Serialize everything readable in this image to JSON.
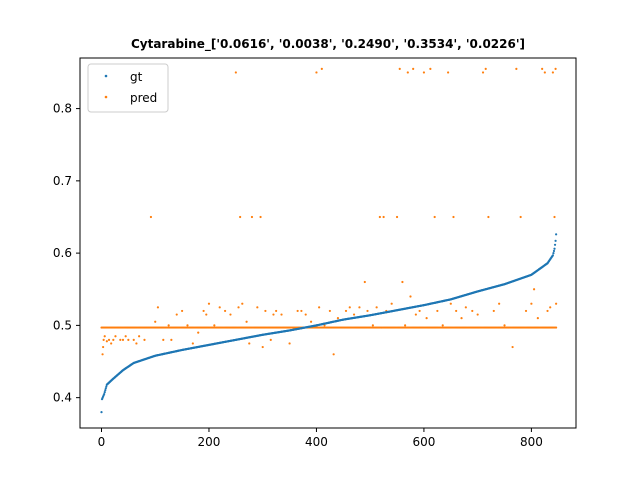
{
  "chart_data": {
    "type": "scatter",
    "title": "Cytarabine_['0.0616', '0.0038', '0.2490', '0.3534', '0.0226']",
    "xlabel": "",
    "ylabel": "",
    "xlim": [
      -40,
      883
    ],
    "ylim": [
      0.358,
      0.87
    ],
    "x_ticks": [
      0,
      200,
      400,
      600,
      800
    ],
    "y_ticks": [
      0.4,
      0.5,
      0.6,
      0.7,
      0.8
    ],
    "grid": false,
    "legend_position": "top-left",
    "series": [
      {
        "name": "gt",
        "color": "#1f77b4",
        "curve": [
          [
            0,
            0.38
          ],
          [
            1,
            0.398
          ],
          [
            5,
            0.405
          ],
          [
            10,
            0.418
          ],
          [
            20,
            0.425
          ],
          [
            40,
            0.438
          ],
          [
            60,
            0.448
          ],
          [
            80,
            0.453
          ],
          [
            100,
            0.458
          ],
          [
            150,
            0.466
          ],
          [
            200,
            0.473
          ],
          [
            250,
            0.48
          ],
          [
            300,
            0.487
          ],
          [
            350,
            0.493
          ],
          [
            400,
            0.5
          ],
          [
            450,
            0.508
          ],
          [
            500,
            0.514
          ],
          [
            550,
            0.521
          ],
          [
            600,
            0.528
          ],
          [
            650,
            0.536
          ],
          [
            700,
            0.547
          ],
          [
            750,
            0.557
          ],
          [
            800,
            0.57
          ],
          [
            830,
            0.586
          ],
          [
            840,
            0.597
          ],
          [
            843,
            0.606
          ],
          [
            845,
            0.617
          ],
          [
            846,
            0.626
          ]
        ]
      },
      {
        "name": "pred",
        "color": "#ff7f0e",
        "baseline": 0.497,
        "points": [
          [
            2,
            0.46
          ],
          [
            3,
            0.47
          ],
          [
            4,
            0.48
          ],
          [
            6,
            0.485
          ],
          [
            10,
            0.478
          ],
          [
            14,
            0.48
          ],
          [
            18,
            0.475
          ],
          [
            22,
            0.48
          ],
          [
            26,
            0.485
          ],
          [
            35,
            0.48
          ],
          [
            40,
            0.48
          ],
          [
            45,
            0.485
          ],
          [
            50,
            0.48
          ],
          [
            60,
            0.48
          ],
          [
            65,
            0.475
          ],
          [
            70,
            0.485
          ],
          [
            80,
            0.48
          ],
          [
            92,
            0.65
          ],
          [
            100,
            0.505
          ],
          [
            105,
            0.525
          ],
          [
            115,
            0.48
          ],
          [
            125,
            0.5
          ],
          [
            130,
            0.48
          ],
          [
            140,
            0.515
          ],
          [
            150,
            0.52
          ],
          [
            160,
            0.5
          ],
          [
            170,
            0.475
          ],
          [
            180,
            0.49
          ],
          [
            190,
            0.52
          ],
          [
            195,
            0.515
          ],
          [
            200,
            0.53
          ],
          [
            210,
            0.5
          ],
          [
            220,
            0.525
          ],
          [
            230,
            0.52
          ],
          [
            240,
            0.515
          ],
          [
            250,
            0.85
          ],
          [
            255,
            0.525
          ],
          [
            258,
            0.65
          ],
          [
            262,
            0.53
          ],
          [
            270,
            0.505
          ],
          [
            275,
            0.475
          ],
          [
            280,
            0.65
          ],
          [
            290,
            0.525
          ],
          [
            296,
            0.65
          ],
          [
            300,
            0.47
          ],
          [
            305,
            0.52
          ],
          [
            315,
            0.48
          ],
          [
            320,
            0.515
          ],
          [
            325,
            0.52
          ],
          [
            335,
            0.515
          ],
          [
            350,
            0.475
          ],
          [
            365,
            0.52
          ],
          [
            372,
            0.52
          ],
          [
            380,
            0.515
          ],
          [
            390,
            0.505
          ],
          [
            400,
            0.85
          ],
          [
            405,
            0.525
          ],
          [
            410,
            0.855
          ],
          [
            415,
            0.5
          ],
          [
            425,
            0.52
          ],
          [
            432,
            0.46
          ],
          [
            440,
            0.51
          ],
          [
            455,
            0.52
          ],
          [
            462,
            0.525
          ],
          [
            470,
            0.515
          ],
          [
            480,
            0.525
          ],
          [
            490,
            0.56
          ],
          [
            495,
            0.52
          ],
          [
            505,
            0.5
          ],
          [
            512,
            0.525
          ],
          [
            518,
            0.65
          ],
          [
            525,
            0.65
          ],
          [
            530,
            0.52
          ],
          [
            540,
            0.53
          ],
          [
            550,
            0.65
          ],
          [
            555,
            0.855
          ],
          [
            560,
            0.56
          ],
          [
            565,
            0.5
          ],
          [
            570,
            0.85
          ],
          [
            575,
            0.54
          ],
          [
            580,
            0.855
          ],
          [
            585,
            0.515
          ],
          [
            592,
            0.52
          ],
          [
            600,
            0.85
          ],
          [
            605,
            0.51
          ],
          [
            612,
            0.855
          ],
          [
            620,
            0.65
          ],
          [
            625,
            0.52
          ],
          [
            635,
            0.5
          ],
          [
            645,
            0.85
          ],
          [
            650,
            0.53
          ],
          [
            655,
            0.65
          ],
          [
            660,
            0.52
          ],
          [
            670,
            0.51
          ],
          [
            678,
            0.525
          ],
          [
            690,
            0.52
          ],
          [
            700,
            0.515
          ],
          [
            710,
            0.85
          ],
          [
            715,
            0.855
          ],
          [
            720,
            0.65
          ],
          [
            730,
            0.52
          ],
          [
            740,
            0.53
          ],
          [
            750,
            0.5
          ],
          [
            765,
            0.47
          ],
          [
            772,
            0.855
          ],
          [
            780,
            0.65
          ],
          [
            790,
            0.52
          ],
          [
            800,
            0.53
          ],
          [
            805,
            0.55
          ],
          [
            812,
            0.51
          ],
          [
            820,
            0.855
          ],
          [
            825,
            0.85
          ],
          [
            830,
            0.52
          ],
          [
            835,
            0.525
          ],
          [
            840,
            0.85
          ],
          [
            843,
            0.65
          ],
          [
            845,
            0.855
          ],
          [
            846,
            0.53
          ]
        ]
      }
    ]
  }
}
